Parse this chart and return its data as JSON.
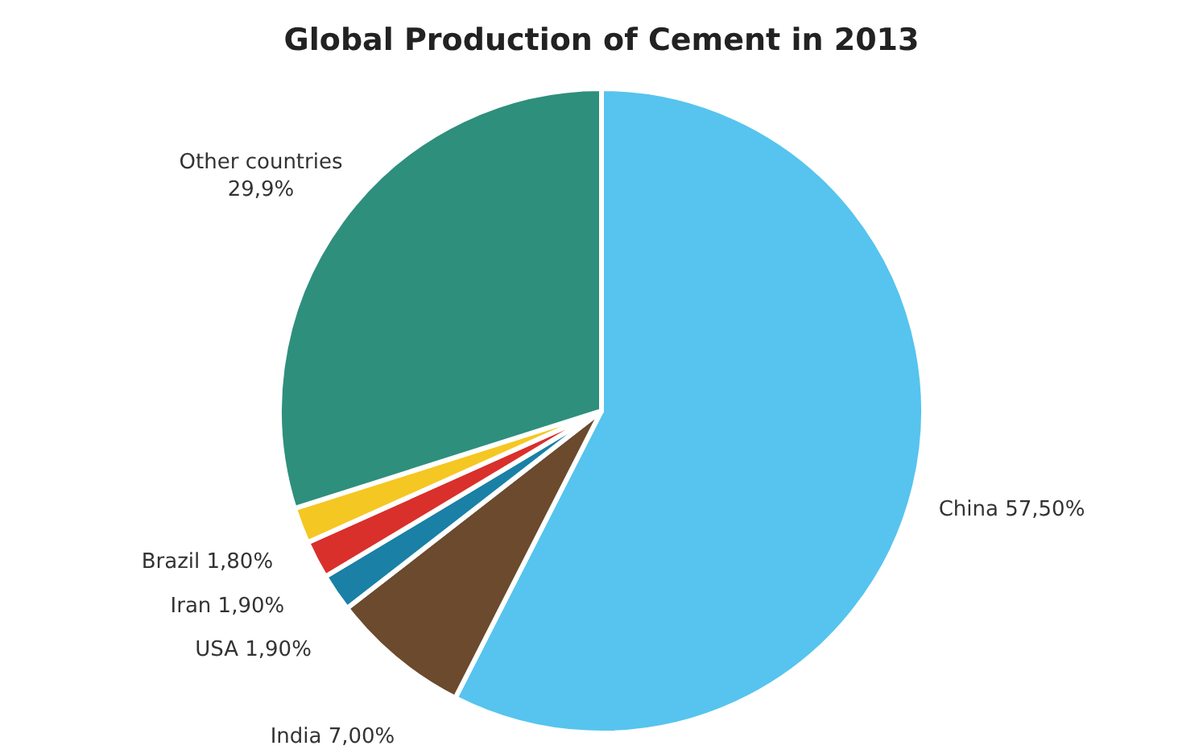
{
  "chart_data": {
    "type": "pie",
    "title": "Global Production of Cement in 2013",
    "categories": [
      "China",
      "India",
      "USA",
      "Iran",
      "Brazil",
      "Other countries"
    ],
    "values": [
      57.5,
      7.0,
      1.9,
      1.9,
      1.8,
      29.9
    ],
    "value_labels": [
      "57,50%",
      "7,00%",
      "1,90%",
      "1,90%",
      "1,80%",
      "29,9%"
    ],
    "colors": [
      "#56c4ee",
      "#6b4a2e",
      "#1a80a6",
      "#d9302c",
      "#f5c723",
      "#2e8f7c"
    ],
    "legend": false
  }
}
